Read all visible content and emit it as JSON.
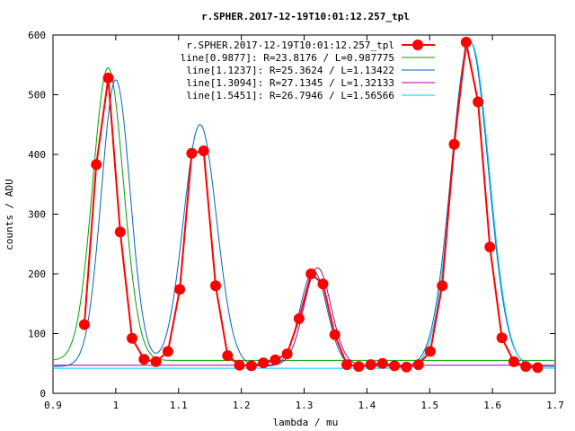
{
  "chart_data": {
    "type": "line",
    "title": "r.SPHER.2017-12-19T10:01:12.257_tpl",
    "xlabel": "lambda / mu",
    "ylabel": "counts / ADU",
    "xlim": [
      0.9,
      1.7
    ],
    "ylim": [
      0,
      600
    ],
    "xticks": [
      0.9,
      1,
      1.1,
      1.2,
      1.3,
      1.4,
      1.5,
      1.6,
      1.7
    ],
    "yticks": [
      0,
      100,
      200,
      300,
      400,
      500,
      600
    ],
    "xtick_labels": [
      "0.9",
      "1",
      "1.1",
      "1.2",
      "1.3",
      "1.4",
      "1.5",
      "1.6",
      "1.7"
    ],
    "ytick_labels": [
      "0",
      "100",
      "200",
      "300",
      "400",
      "500",
      "600"
    ],
    "grid": false,
    "legend_position": "top-right",
    "series": [
      {
        "name": "r.SPHER.2017-12-19T10:01:12.257_tpl",
        "color": "#ff0000",
        "style": "line+markers",
        "x": [
          0.95,
          0.969,
          0.988,
          1.007,
          1.026,
          1.045,
          1.064,
          1.083,
          1.102,
          1.121,
          1.14,
          1.159,
          1.178,
          1.197,
          1.216,
          1.235,
          1.254,
          1.273,
          1.292,
          1.311,
          1.33,
          1.349,
          1.368,
          1.387,
          1.406,
          1.425,
          1.444,
          1.463,
          1.482,
          1.501,
          1.52,
          1.539,
          1.558,
          1.577,
          1.596,
          1.615,
          1.634,
          1.653,
          1.672
        ],
        "y": [
          115,
          383,
          528,
          270,
          92,
          57,
          53,
          70,
          174,
          402,
          406,
          180,
          63,
          47,
          46,
          51,
          56,
          66,
          125,
          200,
          183,
          98,
          48,
          45,
          48,
          50,
          46,
          44,
          48,
          70,
          180,
          417,
          588,
          488,
          245,
          93,
          53,
          45,
          43
        ]
      },
      {
        "name": "line[0.9877]: R=23.8176 / L=0.987775",
        "color": "#00a000",
        "style": "line",
        "baseline": 55,
        "peaks": [
          [
            0.9878,
            490,
            0.0245
          ]
        ]
      },
      {
        "name": "line[1.1237]: R=25.3624 / L=1.13422",
        "color": "#0066bb",
        "style": "line",
        "baseline": 45,
        "peaks": [
          [
            1.0,
            480,
            0.023
          ],
          [
            1.1342,
            405,
            0.0265
          ],
          [
            1.315,
            160,
            0.0215
          ],
          [
            1.564,
            545,
            0.0295
          ]
        ]
      },
      {
        "name": "line[1.3094]: R=27.1345 / L=1.32133",
        "color": "#a000a0",
        "style": "line",
        "baseline": 47,
        "peaks": [
          [
            1.3213,
            163,
            0.0215
          ]
        ]
      },
      {
        "name": "line[1.5451]: R=26.7946 / L=1.56566",
        "color": "#00c8ff",
        "style": "line",
        "baseline": 42,
        "peaks": [
          [
            1.5657,
            545,
            0.0295
          ]
        ]
      }
    ]
  }
}
